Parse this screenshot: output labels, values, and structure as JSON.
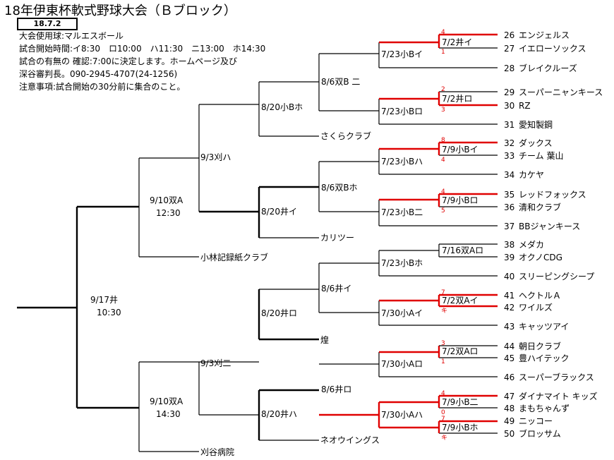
{
  "title": "18年伊東杯軟式野球大会（Ｂブロック）",
  "date_box": "18.7.2",
  "notes": [
    "大会使用球:マルエスボール",
    "試合開始時間:イ8:30　ロ10:00　ハ11:30　ニ13:00　ホ14:30",
    "試合の有無の 確認:7:00に決定します。ホームページ及び",
    "深谷審判長。090-2945-4707(24-1256)",
    "注意事項:試合開始の30分前に集合のこと。"
  ],
  "teams": [
    {
      "no": "26",
      "name": "エンジェルス"
    },
    {
      "no": "27",
      "name": "イエローソックス"
    },
    {
      "no": "28",
      "name": "ブレイクルーズ"
    },
    {
      "no": "29",
      "name": "スーパーニャンキース"
    },
    {
      "no": "30",
      "name": "RZ"
    },
    {
      "no": "31",
      "name": "愛知製鋼"
    },
    {
      "no": "32",
      "name": "ダックス"
    },
    {
      "no": "33",
      "name": "チーム 葉山"
    },
    {
      "no": "34",
      "name": "カケヤ"
    },
    {
      "no": "35",
      "name": "レッドフォックス"
    },
    {
      "no": "36",
      "name": "清和クラブ"
    },
    {
      "no": "37",
      "name": "BBジャンキース"
    },
    {
      "no": "38",
      "name": "メダカ"
    },
    {
      "no": "39",
      "name": "オクノCDG"
    },
    {
      "no": "40",
      "name": "スリーピングシープ"
    },
    {
      "no": "41",
      "name": "ヘクトルＡ"
    },
    {
      "no": "42",
      "name": "ワイルズ"
    },
    {
      "no": "43",
      "name": "キャッツアイ"
    },
    {
      "no": "44",
      "name": "朝日クラブ"
    },
    {
      "no": "45",
      "name": "豊ハイテック"
    },
    {
      "no": "46",
      "name": "スーパーブラックス"
    },
    {
      "no": "47",
      "name": "ダイナマイト キッズ"
    },
    {
      "no": "48",
      "name": "まもちゃんず"
    },
    {
      "no": "49",
      "name": "ニッコー"
    },
    {
      "no": "50",
      "name": "ブロッサム"
    }
  ],
  "seeded_teams": [
    "さくらクラブ",
    "カリツー",
    "小林記録紙クラブ",
    "煌",
    "ネオウイングス",
    "刈谷病院"
  ],
  "games": {
    "r1_1": "7/2井イ",
    "r1_2": "7/2井ロ",
    "r1_3": "7/9小Bイ",
    "r1_4": "7/9小Bロ",
    "r1_5": "7/16双Aロ",
    "r1_6": "7/2双Aイ",
    "r1_7": "7/2双Aロ",
    "r1_8": "7/9小B二",
    "r1_9": "7/9小Bホ",
    "r2_1": "7/23小Bイ",
    "r2_2": "7/23小Bロ",
    "r2_3": "7/23小Bハ",
    "r2_4": "7/23小B二",
    "r2_5": "7/23小Bホ",
    "r2_6": "7/30小Aイ",
    "r2_7": "7/30小Aロ",
    "r2_8": "7/30小Aハ",
    "r3_1": "8/6双B 二",
    "r3_2": "8/6双Bホ",
    "r3_3": "8/6井イ",
    "r3_4": "8/6井ロ",
    "r4_1": "8/20小Bホ",
    "r4_2": "8/20井イ",
    "r4_3": "8/20井ロ",
    "r4_4": "8/20井ハ",
    "r5_1": "9/3刈ハ",
    "r5_2": "9/3刈二",
    "r6_1": "9/10双A",
    "r6_1_time": "12:30",
    "r6_2": "9/10双A",
    "r6_2_time": "14:30",
    "final": "9/17井",
    "final_time": "10:30"
  },
  "scores": {
    "g1_top": "4",
    "g1_bot": "1",
    "g2_top": "2",
    "g2_bot": "3",
    "g3_top": "8",
    "g3_bot": "4",
    "g4_top": "4",
    "g4_bot": "5",
    "g6_top": "7",
    "g6_bot": "キ",
    "g7_top": "3",
    "g7_bot": "1",
    "g8_top": "4",
    "g8_bot": "0",
    "g9_top": "7",
    "g9_bot": "キ"
  }
}
